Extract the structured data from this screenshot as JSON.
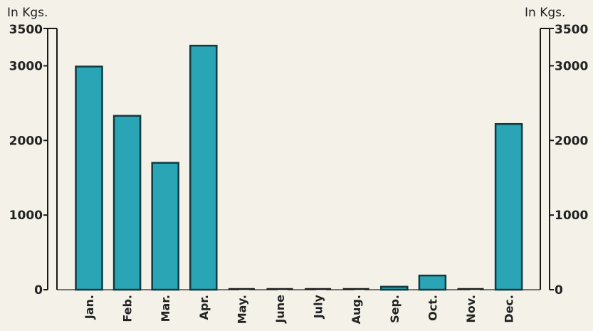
{
  "chart_data": {
    "type": "bar",
    "categories": [
      "Jan.",
      "Feb.",
      "Mar.",
      "Apr.",
      "May.",
      "June",
      "July",
      "Aug.",
      "Sep.",
      "Oct.",
      "Nov.",
      "Dec."
    ],
    "values": [
      2990,
      2330,
      1700,
      3270,
      0,
      0,
      0,
      0,
      40,
      190,
      0,
      2220
    ],
    "ylim": [
      0,
      3500
    ],
    "yticks": [
      0,
      1000,
      2000,
      3000,
      3500
    ],
    "left_tick_labels": [
      "0",
      "1000",
      "2000",
      "3000",
      "3500"
    ],
    "right_tick_labels": [
      "0",
      "1000",
      "2000",
      "3000",
      "3500"
    ],
    "left_unit": "In  Kgs.",
    "right_unit": "In  Kgs.",
    "bar_color": "#2aa5b5",
    "grid": false,
    "legend": "none"
  }
}
